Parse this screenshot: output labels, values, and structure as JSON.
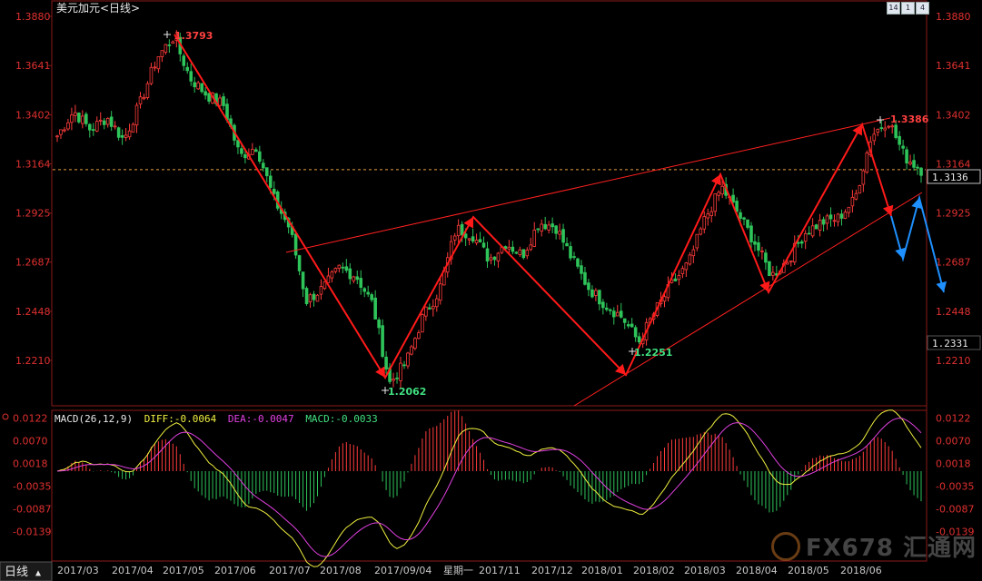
{
  "window": {
    "title": "美元加元<日线>",
    "period_label": "日线",
    "buttons": [
      "14",
      "1",
      "4"
    ]
  },
  "price_panel": {
    "last_price_box": "1.3136",
    "lower_box": "1.2331",
    "annotations": [
      {
        "text": "1.3793",
        "color": "#ff4040"
      },
      {
        "text": "1.3386",
        "color": "#ff4040"
      },
      {
        "text": "1.2062",
        "color": "#40e080"
      },
      {
        "text": "1.2251",
        "color": "#40e080"
      }
    ]
  },
  "macd_panel": {
    "label": "MACD(26,12,9)",
    "diff": "DIFF:-0.0064",
    "dea": "DEA:-0.0047",
    "macd": "MACD:-0.0033"
  },
  "x_axis": {
    "labels": [
      "2017/03",
      "2017/04",
      "2017/05",
      "2017/06",
      "2017/07",
      "2017/08",
      "2017/09/04",
      "星期一",
      "2017/11",
      "2017/12",
      "2018/01",
      "2018/02",
      "2018/03",
      "2018/04",
      "2018/05",
      "2018/06"
    ]
  },
  "watermark": "FX678 汇通网",
  "colors": {
    "up": "#ff3b3b",
    "down": "#2ec45a",
    "diff_line": "#f0f040",
    "dea_line": "#e040e0",
    "arrow_red": "#ff1a1a",
    "arrow_blue": "#1e90ff"
  },
  "chart_data": [
    {
      "type": "candlestick",
      "title": "美元加元<日线>",
      "ylim": [
        1.19,
        1.388
      ],
      "y_ticks": [
        1.388,
        1.3641,
        1.3402,
        1.3164,
        1.2925,
        1.2687,
        1.2448,
        1.221
      ],
      "x_labels": [
        "2017/03",
        "2017/04",
        "2017/05",
        "2017/06",
        "2017/07",
        "2017/08",
        "2017/09/04 星期一",
        "2017/11",
        "2017/12",
        "2018/01",
        "2018/02",
        "2018/03",
        "2018/04",
        "2018/05",
        "2018/06"
      ],
      "reference_line": 1.3136,
      "swing_points": [
        {
          "date": "2017/05",
          "value": 1.3793
        },
        {
          "date": "2017/09",
          "value": 1.2062
        },
        {
          "date": "2018/01",
          "value": 1.2251
        },
        {
          "date": "2018/06",
          "value": 1.3386
        }
      ],
      "close_path": [
        [
          "2017/03",
          1.33
        ],
        [
          "2017/03",
          1.342
        ],
        [
          "2017/04",
          1.333
        ],
        [
          "2017/04",
          1.339
        ],
        [
          "2017/04",
          1.328
        ],
        [
          "2017/04",
          1.346
        ],
        [
          "2017/05",
          1.368
        ],
        [
          "2017/05",
          1.378
        ],
        [
          "2017/05",
          1.358
        ],
        [
          "2017/05",
          1.35
        ],
        [
          "2017/06",
          1.345
        ],
        [
          "2017/06",
          1.32
        ],
        [
          "2017/06",
          1.325
        ],
        [
          "2017/06",
          1.3
        ],
        [
          "2017/07",
          1.285
        ],
        [
          "2017/07",
          1.25
        ],
        [
          "2017/07",
          1.256
        ],
        [
          "2017/08",
          1.266
        ],
        [
          "2017/08",
          1.262
        ],
        [
          "2017/08",
          1.248
        ],
        [
          "2017/09",
          1.21
        ],
        [
          "2017/09",
          1.22
        ],
        [
          "2017/09",
          1.242
        ],
        [
          "2017/10",
          1.255
        ],
        [
          "2017/10",
          1.285
        ],
        [
          "2017/10",
          1.282
        ],
        [
          "2017/11",
          1.27
        ],
        [
          "2017/11",
          1.278
        ],
        [
          "2017/11",
          1.272
        ],
        [
          "2017/12",
          1.288
        ],
        [
          "2017/12",
          1.286
        ],
        [
          "2017/12",
          1.27
        ],
        [
          "2017/12",
          1.256
        ],
        [
          "2018/01",
          1.248
        ],
        [
          "2018/01",
          1.242
        ],
        [
          "2018/01",
          1.23
        ],
        [
          "2018/02",
          1.245
        ],
        [
          "2018/02",
          1.258
        ],
        [
          "2018/02",
          1.268
        ],
        [
          "2018/03",
          1.29
        ],
        [
          "2018/03",
          1.305
        ],
        [
          "2018/03",
          1.292
        ],
        [
          "2018/04",
          1.278
        ],
        [
          "2018/04",
          1.262
        ],
        [
          "2018/04",
          1.27
        ],
        [
          "2018/05",
          1.283
        ],
        [
          "2018/05",
          1.288
        ],
        [
          "2018/05",
          1.29
        ],
        [
          "2018/06",
          1.299
        ],
        [
          "2018/06",
          1.33
        ],
        [
          "2018/06",
          1.338
        ],
        [
          "2018/06",
          1.32
        ],
        [
          "2018/06",
          1.3136
        ]
      ]
    },
    {
      "type": "bar",
      "title": "MACD(26,12,9)",
      "ylim": [
        -0.0155,
        0.0135
      ],
      "y_ticks": [
        0.0122,
        0.007,
        0.0018,
        -0.0035,
        -0.0087,
        -0.0139
      ],
      "series": [
        {
          "name": "DIFF",
          "last": -0.0064
        },
        {
          "name": "DEA",
          "last": -0.0047
        },
        {
          "name": "MACD",
          "last": -0.0033
        }
      ]
    }
  ]
}
